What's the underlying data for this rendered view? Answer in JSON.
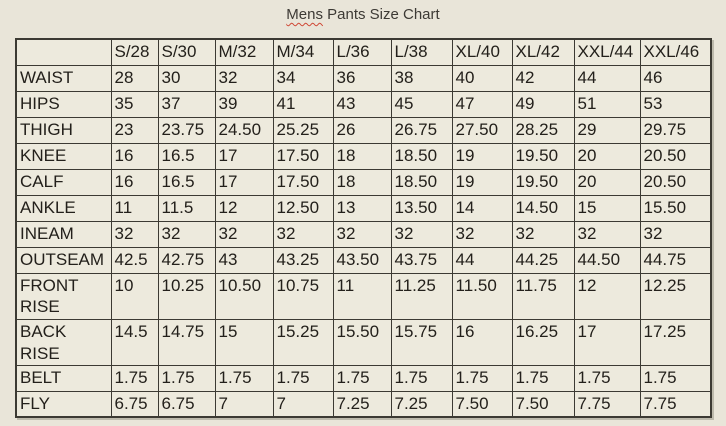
{
  "page": {
    "title_misspelled": "Mens",
    "title_rest": "Pants Size Chart",
    "background_color": "#e9e5d9",
    "cell_background": "#edeadd",
    "border_color": "#3c3a33",
    "text_color": "#23201b",
    "spellcheck_squiggle_color": "#cf4634"
  },
  "chart_data": {
    "type": "table",
    "title": "Mens Pants Size Chart",
    "columns": [
      "",
      "S/28",
      "S/30",
      "M/32",
      "M/34",
      "L/36",
      "L/38",
      "XL/40",
      "XL/42",
      "XXL/44",
      "XXL/46"
    ],
    "rows": [
      {
        "label": "WAIST",
        "values": [
          "28",
          "30",
          "32",
          "34",
          "36",
          "38",
          "40",
          "42",
          "44",
          "46"
        ]
      },
      {
        "label": "HIPS",
        "values": [
          "35",
          "37",
          "39",
          "41",
          "43",
          "45",
          "47",
          "49",
          "51",
          "53"
        ]
      },
      {
        "label": "THIGH",
        "values": [
          "23",
          "23.75",
          "24.50",
          "25.25",
          "26",
          "26.75",
          "27.50",
          "28.25",
          "29",
          "29.75"
        ]
      },
      {
        "label": "KNEE",
        "values": [
          "16",
          "16.5",
          "17",
          "17.50",
          "18",
          "18.50",
          "19",
          "19.50",
          "20",
          "20.50"
        ]
      },
      {
        "label": "CALF",
        "values": [
          "16",
          "16.5",
          "17",
          "17.50",
          "18",
          "18.50",
          "19",
          "19.50",
          "20",
          "20.50"
        ]
      },
      {
        "label": "ANKLE",
        "values": [
          "11",
          "11.5",
          "12",
          "12.50",
          "13",
          "13.50",
          "14",
          "14.50",
          "15",
          "15.50"
        ]
      },
      {
        "label": "INEAM",
        "values": [
          "32",
          "32",
          "32",
          "32",
          "32",
          "32",
          "32",
          "32",
          "32",
          "32"
        ]
      },
      {
        "label": "OUTSEAM",
        "values": [
          "42.5",
          "42.75",
          "43",
          "43.25",
          "43.50",
          "43.75",
          "44",
          "44.25",
          "44.50",
          "44.75"
        ]
      },
      {
        "label": "FRONT RISE",
        "values": [
          "10",
          "10.25",
          "10.50",
          "10.75",
          "11",
          "11.25",
          "11.50",
          "11.75",
          "12",
          "12.25"
        ]
      },
      {
        "label": "BACK RISE",
        "values": [
          "14.5",
          "14.75",
          "15",
          "15.25",
          "15.50",
          "15.75",
          "16",
          "16.25",
          "17",
          "17.25"
        ]
      },
      {
        "label": "BELT",
        "values": [
          "1.75",
          "1.75",
          "1.75",
          "1.75",
          "1.75",
          "1.75",
          "1.75",
          "1.75",
          "1.75",
          "1.75"
        ]
      },
      {
        "label": "FLY",
        "values": [
          "6.75",
          "6.75",
          "7",
          "7",
          "7.25",
          "7.25",
          "7.50",
          "7.50",
          "7.75",
          "7.75"
        ]
      }
    ]
  }
}
